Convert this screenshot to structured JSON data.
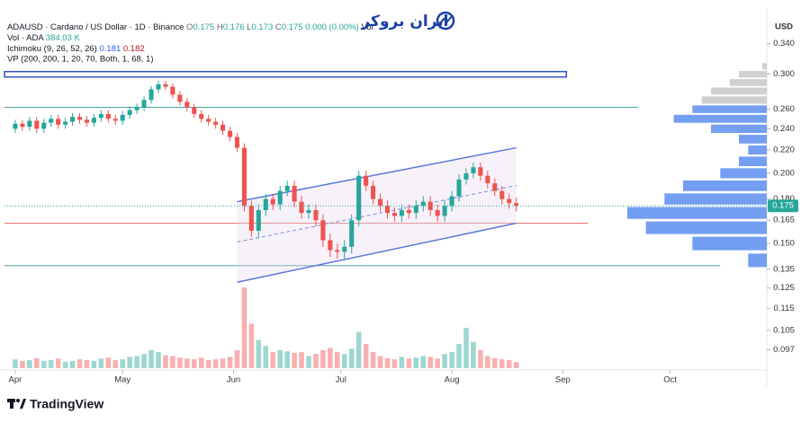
{
  "header": {
    "symbol": "ADAUSD · Cardano / US Dollar · 1D · Binance",
    "ohlc": [
      "O",
      "0.175",
      "H",
      "0.176",
      "L",
      "0.173",
      "C",
      "0.175"
    ],
    "change": "0.000 (0.00%)",
    "vol": "Vol",
    "volume_legend": [
      "Vol · ADA",
      "384.03 K"
    ],
    "ichimoku": [
      "Ichimoku (9, 26, 52, 26)",
      "0.181",
      "0.182"
    ],
    "vp": "VP (200, 200, 1, 20, 70, Both, 1, 68, 1)",
    "logo": "ایران بروکر",
    "currency": "USD",
    "footer": "TradingView"
  },
  "chart_data": {
    "type": "candlestick",
    "log_scale": true,
    "grid": false,
    "up_color": "#26a69a",
    "down_color": "#ef5350",
    "xlim": [
      -3,
      210
    ],
    "xticks": [
      {
        "value": 0,
        "label": "Apr"
      },
      {
        "value": 30,
        "label": "May"
      },
      {
        "value": 61,
        "label": "Jun"
      },
      {
        "value": 91,
        "label": "Jul"
      },
      {
        "value": 122,
        "label": "Aug"
      },
      {
        "value": 153,
        "label": "Sep"
      },
      {
        "value": 183,
        "label": "Oct"
      }
    ],
    "ylim": [
      0.09,
      0.392
    ],
    "yticks": [
      {
        "value": 0.34,
        "label": "0.340"
      },
      {
        "value": 0.3,
        "label": "0.300"
      },
      {
        "value": 0.26,
        "label": "0.260"
      },
      {
        "value": 0.24,
        "label": "0.240"
      },
      {
        "value": 0.22,
        "label": "0.220"
      },
      {
        "value": 0.2,
        "label": "0.200"
      },
      {
        "value": 0.18,
        "label": "0.180"
      },
      0.165,
      {
        "value": 0.15,
        "label": "0.150"
      },
      0.135,
      0.125,
      0.115,
      0.105,
      0.097
    ],
    "last_price": 0.175,
    "x": [
      0,
      2,
      4,
      6,
      8,
      10,
      12,
      14,
      16,
      18,
      20,
      22,
      24,
      26,
      28,
      30,
      32,
      34,
      36,
      38,
      40,
      42,
      44,
      46,
      48,
      50,
      52,
      54,
      56,
      58,
      60,
      62,
      64,
      66,
      68,
      70,
      72,
      74,
      76,
      78,
      80,
      82,
      84,
      86,
      88,
      90,
      92,
      94,
      96,
      98,
      100,
      102,
      104,
      106,
      108,
      110,
      112,
      114,
      116,
      118,
      120,
      122,
      124,
      126,
      128,
      130,
      132,
      134,
      136,
      138,
      140
    ],
    "open": [
      0.24,
      0.245,
      0.242,
      0.248,
      0.24,
      0.246,
      0.25,
      0.244,
      0.247,
      0.252,
      0.249,
      0.246,
      0.251,
      0.255,
      0.25,
      0.248,
      0.254,
      0.259,
      0.262,
      0.27,
      0.282,
      0.288,
      0.285,
      0.276,
      0.268,
      0.262,
      0.255,
      0.25,
      0.247,
      0.244,
      0.238,
      0.232,
      0.222,
      0.175,
      0.158,
      0.172,
      0.18,
      0.176,
      0.186,
      0.19,
      0.178,
      0.17,
      0.172,
      0.165,
      0.152,
      0.146,
      0.145,
      0.148,
      0.165,
      0.198,
      0.19,
      0.18,
      0.175,
      0.17,
      0.168,
      0.172,
      0.17,
      0.175,
      0.178,
      0.172,
      0.168,
      0.175,
      0.182,
      0.195,
      0.2,
      0.205,
      0.198,
      0.192,
      0.186,
      0.18,
      0.177
    ],
    "high": [
      0.249,
      0.249,
      0.252,
      0.252,
      0.25,
      0.254,
      0.254,
      0.251,
      0.256,
      0.256,
      0.253,
      0.255,
      0.259,
      0.259,
      0.254,
      0.258,
      0.263,
      0.266,
      0.274,
      0.286,
      0.292,
      0.292,
      0.289,
      0.28,
      0.272,
      0.266,
      0.259,
      0.254,
      0.251,
      0.248,
      0.242,
      0.236,
      0.226,
      0.179,
      0.176,
      0.184,
      0.184,
      0.19,
      0.194,
      0.194,
      0.182,
      0.176,
      0.176,
      0.169,
      0.156,
      0.15,
      0.152,
      0.169,
      0.202,
      0.202,
      0.194,
      0.184,
      0.179,
      0.174,
      0.176,
      0.176,
      0.179,
      0.182,
      0.182,
      0.176,
      0.179,
      0.186,
      0.199,
      0.204,
      0.209,
      0.209,
      0.202,
      0.196,
      0.19,
      0.184,
      0.181
    ],
    "low": [
      0.236,
      0.238,
      0.238,
      0.236,
      0.236,
      0.242,
      0.24,
      0.24,
      0.243,
      0.245,
      0.242,
      0.242,
      0.247,
      0.246,
      0.244,
      0.244,
      0.25,
      0.255,
      0.258,
      0.266,
      0.278,
      0.281,
      0.272,
      0.264,
      0.258,
      0.251,
      0.246,
      0.243,
      0.24,
      0.234,
      0.228,
      0.218,
      0.171,
      0.154,
      0.154,
      0.168,
      0.172,
      0.172,
      0.182,
      0.174,
      0.166,
      0.166,
      0.161,
      0.148,
      0.142,
      0.141,
      0.141,
      0.144,
      0.161,
      0.186,
      0.176,
      0.171,
      0.166,
      0.164,
      0.164,
      0.166,
      0.166,
      0.171,
      0.168,
      0.164,
      0.164,
      0.171,
      0.178,
      0.191,
      0.196,
      0.194,
      0.188,
      0.182,
      0.176,
      0.173,
      0.171
    ],
    "close": [
      0.245,
      0.242,
      0.248,
      0.24,
      0.246,
      0.25,
      0.244,
      0.247,
      0.252,
      0.249,
      0.246,
      0.251,
      0.255,
      0.25,
      0.248,
      0.254,
      0.259,
      0.262,
      0.27,
      0.282,
      0.288,
      0.285,
      0.276,
      0.268,
      0.262,
      0.255,
      0.25,
      0.247,
      0.244,
      0.238,
      0.232,
      0.222,
      0.175,
      0.158,
      0.172,
      0.18,
      0.176,
      0.186,
      0.19,
      0.178,
      0.17,
      0.172,
      0.165,
      0.152,
      0.146,
      0.145,
      0.148,
      0.165,
      0.198,
      0.19,
      0.18,
      0.175,
      0.17,
      0.168,
      0.172,
      0.17,
      0.175,
      0.178,
      0.172,
      0.168,
      0.175,
      0.182,
      0.195,
      0.2,
      0.205,
      0.198,
      0.192,
      0.186,
      0.18,
      0.177,
      0.175
    ],
    "volume": [
      22,
      18,
      20,
      25,
      18,
      20,
      24,
      16,
      18,
      22,
      20,
      18,
      24,
      26,
      20,
      22,
      28,
      30,
      35,
      45,
      40,
      32,
      30,
      26,
      24,
      22,
      26,
      20,
      22,
      24,
      28,
      45,
      200,
      110,
      70,
      55,
      40,
      45,
      42,
      38,
      40,
      30,
      35,
      45,
      50,
      40,
      35,
      48,
      90,
      60,
      40,
      30,
      25,
      22,
      28,
      24,
      26,
      30,
      28,
      24,
      35,
      40,
      60,
      100,
      65,
      45,
      30,
      25,
      22,
      20,
      15
    ],
    "volume_profile": {
      "prices": [
        0.31,
        0.3,
        0.29,
        0.28,
        0.27,
        0.26,
        0.25,
        0.24,
        0.23,
        0.22,
        0.21,
        0.2,
        0.19,
        0.18,
        0.17,
        0.16,
        0.15,
        0.14
      ],
      "volumes": [
        5,
        30,
        40,
        60,
        70,
        80,
        100,
        60,
        30,
        20,
        30,
        50,
        90,
        110,
        150,
        130,
        80,
        20
      ],
      "colors": [
        "#c8c8c8",
        "#c8c8c8",
        "#c8c8c8",
        "#c8c8c8",
        "#c8c8c8",
        "#5b8def",
        "#5b8def",
        "#5b8def",
        "#5b8def",
        "#5b8def",
        "#5b8def",
        "#5b8def",
        "#5b8def",
        "#5b8def",
        "#5b8def",
        "#5b8def",
        "#5b8def",
        "#5b8def"
      ]
    },
    "levels": [
      {
        "price": 0.3,
        "x_end": 154,
        "color": "#2f55c8",
        "style": "box"
      },
      {
        "price": 0.262,
        "x_end": 174,
        "color": "#4aa3a0",
        "style": "line"
      },
      {
        "price": 0.163,
        "x_end": 160,
        "color": "#e57373",
        "style": "line"
      },
      {
        "price": 0.137,
        "x_end": 197,
        "color": "#4aa3a0",
        "style": "line"
      }
    ],
    "channel": {
      "x": [
        62,
        140
      ],
      "upper": [
        0.178,
        0.222
      ],
      "lower": [
        0.128,
        0.163
      ],
      "color": "#5a78d8"
    }
  }
}
